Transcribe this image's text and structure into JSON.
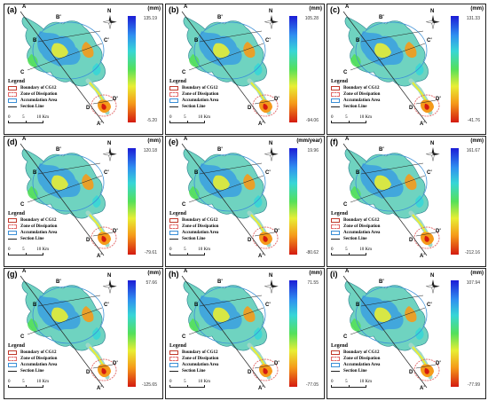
{
  "legend": {
    "title": "Legend",
    "boundary": "Boundary of CG12",
    "dissipation": "Zone of Dissipation",
    "accumulation": "Accumulation Area",
    "section": "Section Line"
  },
  "section_labels": {
    "a": "A",
    "b": "B",
    "c": "C",
    "d": "D",
    "a2": "A'",
    "b2": "B'",
    "c2": "C'",
    "d2": "D'"
  },
  "north": "N",
  "scale": {
    "n0": "0",
    "n1": "5",
    "n2": "10 Km"
  },
  "colors": {
    "boundary": "#c0392b",
    "dissipation": "#e26a6a",
    "accumulation": "#3b8fd6"
  },
  "panels": [
    {
      "label": "(a)",
      "unit": "(mm)",
      "max": "135.19",
      "min": "-5.20"
    },
    {
      "label": "(b)",
      "unit": "(mm)",
      "max": "105.28",
      "min": "-94.06"
    },
    {
      "label": "(c)",
      "unit": "(mm)",
      "max": "131.33",
      "min": "-41.76"
    },
    {
      "label": "(d)",
      "unit": "(mm)",
      "max": "120.18",
      "min": "-79.61"
    },
    {
      "label": "(e)",
      "unit": "(mm/year)",
      "max": "19.96",
      "min": "-80.62"
    },
    {
      "label": "(f)",
      "unit": "(mm)",
      "max": "161.67",
      "min": "-212.16"
    },
    {
      "label": "(g)",
      "unit": "(mm)",
      "max": "57.66",
      "min": "-125.65"
    },
    {
      "label": "(h)",
      "unit": "(mm)",
      "max": "71.55",
      "min": "-77.05"
    },
    {
      "label": "(i)",
      "unit": "(mm)",
      "max": "107.94",
      "min": "-77.99"
    }
  ]
}
